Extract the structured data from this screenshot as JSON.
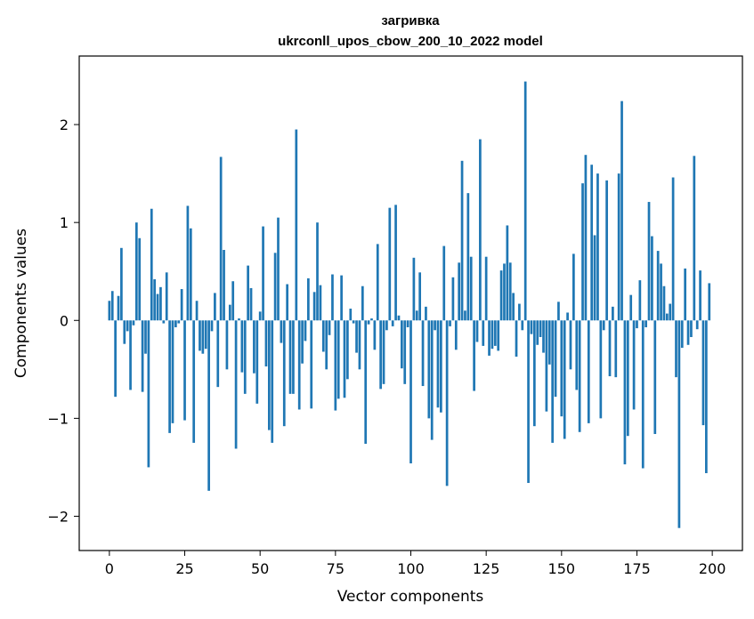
{
  "chart_data": {
    "type": "bar",
    "title": "загривка",
    "subtitle": "ukrconll_upos_cbow_200_10_2022 model",
    "xlabel": "Vector components",
    "ylabel": "Components values",
    "xlim": [
      -10,
      210
    ],
    "ylim": [
      -2.35,
      2.7
    ],
    "xticks": [
      0,
      25,
      50,
      75,
      100,
      125,
      150,
      175,
      200
    ],
    "yticks": [
      -2,
      -1,
      0,
      1,
      2
    ],
    "ytick_labels": [
      "−2",
      "−1",
      "0",
      "1",
      "2"
    ],
    "grid": false,
    "legend": "none",
    "bar_color": "#1f77b4",
    "x": [
      0,
      1,
      2,
      3,
      4,
      5,
      6,
      7,
      8,
      9,
      10,
      11,
      12,
      13,
      14,
      15,
      16,
      17,
      18,
      19,
      20,
      21,
      22,
      23,
      24,
      25,
      26,
      27,
      28,
      29,
      30,
      31,
      32,
      33,
      34,
      35,
      36,
      37,
      38,
      39,
      40,
      41,
      42,
      43,
      44,
      45,
      46,
      47,
      48,
      49,
      50,
      51,
      52,
      53,
      54,
      55,
      56,
      57,
      58,
      59,
      60,
      61,
      62,
      63,
      64,
      65,
      66,
      67,
      68,
      69,
      70,
      71,
      72,
      73,
      74,
      75,
      76,
      77,
      78,
      79,
      80,
      81,
      82,
      83,
      84,
      85,
      86,
      87,
      88,
      89,
      90,
      91,
      92,
      93,
      94,
      95,
      96,
      97,
      98,
      99,
      100,
      101,
      102,
      103,
      104,
      105,
      106,
      107,
      108,
      109,
      110,
      111,
      112,
      113,
      114,
      115,
      116,
      117,
      118,
      119,
      120,
      121,
      122,
      123,
      124,
      125,
      126,
      127,
      128,
      129,
      130,
      131,
      132,
      133,
      134,
      135,
      136,
      137,
      138,
      139,
      140,
      141,
      142,
      143,
      144,
      145,
      146,
      147,
      148,
      149,
      150,
      151,
      152,
      153,
      154,
      155,
      156,
      157,
      158,
      159,
      160,
      161,
      162,
      163,
      164,
      165,
      166,
      167,
      168,
      169,
      170,
      171,
      172,
      173,
      174,
      175,
      176,
      177,
      178,
      179,
      180,
      181,
      182,
      183,
      184,
      185,
      186,
      187,
      188,
      189,
      190,
      191,
      192,
      193,
      194,
      195,
      196,
      197,
      198,
      199
    ],
    "values": [
      0.2,
      0.3,
      -0.78,
      0.25,
      0.74,
      -0.24,
      -0.11,
      -0.71,
      -0.05,
      1.0,
      0.84,
      -0.73,
      -0.34,
      -1.5,
      1.14,
      0.42,
      0.27,
      0.34,
      -0.03,
      0.49,
      -1.15,
      -1.05,
      -0.07,
      -0.03,
      0.32,
      -1.02,
      1.17,
      0.94,
      -1.25,
      0.2,
      -0.31,
      -0.34,
      -0.29,
      -1.74,
      -0.11,
      0.28,
      -0.68,
      1.67,
      0.72,
      -0.5,
      0.16,
      0.4,
      -1.31,
      0.02,
      -0.53,
      -0.75,
      0.56,
      0.33,
      -0.54,
      -0.85,
      0.09,
      0.96,
      -0.47,
      -1.12,
      -1.25,
      0.69,
      1.05,
      -0.23,
      -1.08,
      0.37,
      -0.75,
      -0.75,
      1.95,
      -0.91,
      -0.44,
      -0.21,
      0.43,
      -0.9,
      0.29,
      1.0,
      0.36,
      -0.32,
      -0.5,
      -0.15,
      0.47,
      -0.92,
      -0.8,
      0.46,
      -0.79,
      -0.6,
      0.12,
      -0.03,
      -0.33,
      -0.5,
      0.35,
      -1.26,
      -0.04,
      0.02,
      -0.3,
      0.78,
      -0.7,
      -0.65,
      -0.1,
      1.15,
      -0.06,
      1.18,
      0.05,
      -0.49,
      -0.65,
      -0.07,
      -1.46,
      0.64,
      0.1,
      0.49,
      -0.67,
      0.14,
      -1.0,
      -1.22,
      -0.1,
      -0.89,
      -0.94,
      0.76,
      -1.69,
      -0.06,
      0.44,
      -0.3,
      0.59,
      1.63,
      0.1,
      1.3,
      0.65,
      -0.72,
      -0.22,
      1.85,
      -0.26,
      0.65,
      -0.36,
      -0.29,
      -0.26,
      -0.31,
      0.51,
      0.58,
      0.97,
      0.59,
      0.28,
      -0.37,
      0.17,
      -0.1,
      2.44,
      -1.66,
      -0.14,
      -1.08,
      -0.25,
      -0.17,
      -0.33,
      -0.93,
      -0.45,
      -1.25,
      -0.78,
      0.19,
      -0.98,
      -1.21,
      0.08,
      -0.5,
      0.68,
      -0.71,
      -1.14,
      1.4,
      1.69,
      -1.05,
      1.59,
      0.87,
      1.5,
      -1.0,
      -0.1,
      1.43,
      -0.57,
      0.14,
      -0.58,
      1.5,
      2.24,
      -1.47,
      -1.18,
      0.26,
      -0.91,
      -0.08,
      0.41,
      -1.51,
      -0.07,
      1.21,
      0.86,
      -1.16,
      0.71,
      0.58,
      0.35,
      0.07,
      0.17,
      1.46,
      -0.58,
      -2.12,
      -0.28,
      0.53,
      -0.25,
      -0.17,
      1.68,
      -0.09,
      0.51,
      -1.07,
      -1.56,
      0.38
    ]
  }
}
